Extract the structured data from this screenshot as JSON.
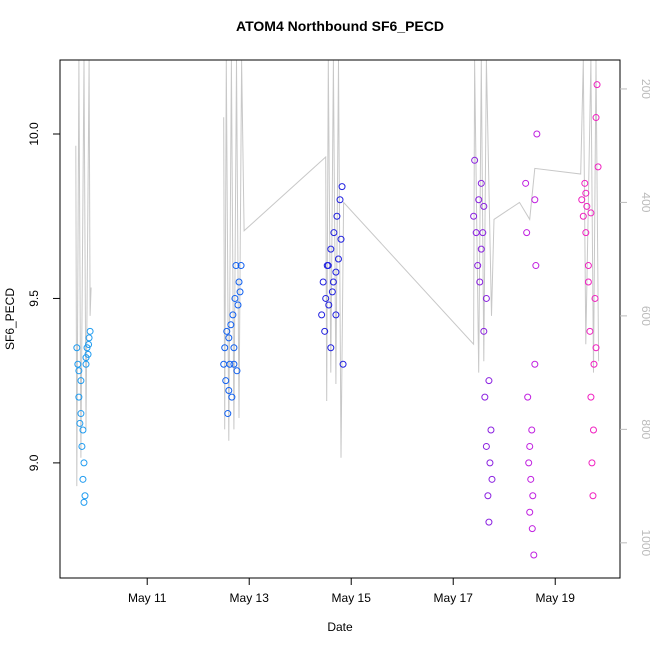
{
  "chart_data": {
    "type": "scatter",
    "title": "ATOM4 Northbound SF6_PECD",
    "x_label": "Date",
    "y_label": "SF6_PECD",
    "xlim": [
      9.29,
      20.27
    ],
    "ylim": [
      8.65,
      10.225
    ],
    "y2lim": [
      1062,
      149
    ],
    "xticks": [
      {
        "value": 11,
        "label": "May 11"
      },
      {
        "value": 13,
        "label": "May 13"
      },
      {
        "value": 15,
        "label": "May 15"
      },
      {
        "value": 17,
        "label": "May 17"
      },
      {
        "value": 19,
        "label": "May 19"
      }
    ],
    "yticks": [
      {
        "value": 9,
        "label": "9.0"
      },
      9.5,
      {
        "value": 10,
        "label": "10.0"
      }
    ],
    "y2ticks": [
      200,
      400,
      600,
      800,
      1000
    ],
    "series": [
      {
        "color": "#1e9bf0",
        "x": [
          9.62,
          9.64,
          9.66,
          9.68,
          9.7,
          9.72,
          9.74,
          9.76,
          9.78,
          9.8,
          9.82,
          9.84,
          9.86,
          9.88,
          9.7,
          9.66,
          9.74,
          9.76,
          9.8,
          9.85
        ],
        "values": [
          9.35,
          9.3,
          9.2,
          9.12,
          9.25,
          9.05,
          8.95,
          8.88,
          8.9,
          9.3,
          9.35,
          9.33,
          9.38,
          9.4,
          9.15,
          9.28,
          9.1,
          9.0,
          9.32,
          9.36
        ]
      },
      {
        "color": "#1060f0",
        "x": [
          12.5,
          12.52,
          12.54,
          12.56,
          12.58,
          12.6,
          12.62,
          12.64,
          12.66,
          12.68,
          12.7,
          12.72,
          12.74,
          12.76,
          12.78,
          12.8,
          12.82,
          12.84,
          12.7,
          12.6
        ],
        "values": [
          9.3,
          9.35,
          9.25,
          9.4,
          9.15,
          9.38,
          9.3,
          9.42,
          9.2,
          9.45,
          9.35,
          9.5,
          9.6,
          9.28,
          9.48,
          9.55,
          9.52,
          9.6,
          9.3,
          9.22
        ]
      },
      {
        "color": "#2020e0",
        "x": [
          14.42,
          14.45,
          14.48,
          14.5,
          14.53,
          14.56,
          14.6,
          14.63,
          14.66,
          14.7,
          14.72,
          14.75,
          14.78,
          14.8,
          14.82,
          14.84,
          14.6,
          14.7,
          14.55,
          14.65
        ],
        "values": [
          9.45,
          9.55,
          9.4,
          9.5,
          9.6,
          9.48,
          9.65,
          9.52,
          9.7,
          9.58,
          9.75,
          9.62,
          9.8,
          9.68,
          9.84,
          9.3,
          9.35,
          9.45,
          9.6,
          9.55
        ]
      },
      {
        "color": "#8a20e0",
        "x": [
          17.4,
          17.42,
          17.45,
          17.48,
          17.5,
          17.52,
          17.55,
          17.58,
          17.6,
          17.62,
          17.65,
          17.68,
          17.7,
          17.72,
          17.74,
          17.76,
          17.6,
          17.55,
          17.65,
          17.7
        ],
        "values": [
          9.75,
          9.92,
          9.7,
          9.6,
          9.8,
          9.55,
          9.85,
          9.7,
          9.4,
          9.2,
          9.05,
          8.9,
          8.82,
          9.0,
          9.1,
          8.95,
          9.78,
          9.65,
          9.5,
          9.25
        ]
      },
      {
        "color": "#c020e0",
        "x": [
          18.42,
          18.44,
          18.46,
          18.48,
          18.5,
          18.52,
          18.54,
          18.56,
          18.58,
          18.6,
          18.62,
          18.64,
          18.5,
          18.55,
          18.6
        ],
        "values": [
          9.85,
          9.7,
          9.2,
          9.0,
          8.85,
          8.95,
          9.1,
          8.9,
          8.72,
          9.8,
          9.6,
          10.0,
          9.05,
          8.8,
          9.3
        ]
      },
      {
        "color": "#f020c0",
        "x": [
          19.52,
          19.55,
          19.58,
          19.6,
          19.62,
          19.65,
          19.68,
          19.7,
          19.72,
          19.74,
          19.76,
          19.78,
          19.8,
          19.82,
          19.84,
          19.6,
          19.7,
          19.75,
          19.65,
          19.8
        ],
        "values": [
          9.8,
          9.75,
          9.85,
          9.7,
          9.78,
          9.6,
          9.4,
          9.2,
          9.0,
          8.9,
          9.3,
          9.5,
          10.05,
          10.15,
          9.9,
          9.82,
          9.76,
          9.1,
          9.55,
          9.35
        ]
      },
      {
        "type": "line",
        "axis": "y2",
        "color": "#c8c8c8",
        "x": [
          9.6,
          9.62,
          9.66,
          9.7,
          9.76,
          9.8,
          9.86,
          9.88,
          9.9,
          null,
          12.5,
          12.52,
          12.55,
          12.6,
          12.65,
          12.7,
          12.75,
          12.8,
          12.85,
          12.9,
          14.5,
          14.52,
          14.55,
          14.6,
          14.65,
          14.7,
          14.75,
          14.8,
          14.85,
          17.4,
          17.42,
          17.5,
          17.55,
          17.6,
          17.65,
          17.75,
          17.8,
          18.3,
          18.5,
          18.6,
          19.5,
          19.55,
          19.6,
          19.7,
          19.75,
          19.8,
          19.85
        ],
        "values": [
          300,
          900,
          150,
          850,
          150,
          800,
          150,
          600,
          550,
          null,
          250,
          800,
          150,
          820,
          150,
          800,
          150,
          780,
          150,
          450,
          320,
          750,
          150,
          700,
          150,
          720,
          150,
          850,
          400,
          650,
          150,
          700,
          150,
          680,
          150,
          600,
          430,
          400,
          430,
          340,
          350,
          150,
          650,
          150,
          700,
          150,
          680
        ]
      }
    ]
  }
}
